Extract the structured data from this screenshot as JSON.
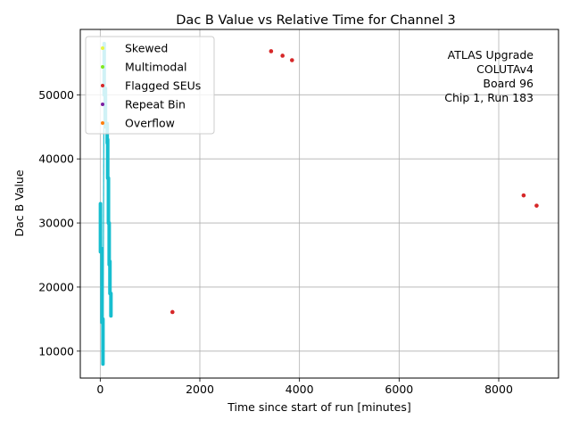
{
  "chart_data": {
    "type": "scatter",
    "title": "Dac B Value vs Relative Time for Channel 3",
    "xlabel": "Time since start of run [minutes]",
    "ylabel": "Dac B Value",
    "xlim": [
      -400,
      9200
    ],
    "ylim": [
      5800,
      60200
    ],
    "xticks": [
      0,
      2000,
      4000,
      6000,
      8000
    ],
    "xtick_labels": [
      "0",
      "2000",
      "4000",
      "6000",
      "8000"
    ],
    "yticks": [
      10000,
      20000,
      30000,
      40000,
      50000
    ],
    "ytick_labels": [
      "10000",
      "20000",
      "30000",
      "40000",
      "50000"
    ],
    "grid": true,
    "legend_position": "top-left",
    "legend": [
      {
        "label": "Skewed",
        "color": "#e6f542"
      },
      {
        "label": "Multimodal",
        "color": "#7fe81f"
      },
      {
        "label": "Flagged SEUs",
        "color": "#d62728"
      },
      {
        "label": "Repeat Bin",
        "color": "#7b1fa2"
      },
      {
        "label": "Overflow",
        "color": "#ff7f0e"
      }
    ],
    "annotation": [
      "ATLAS Upgrade",
      "COLUTAv4",
      "Board 96",
      "Chip 1, Run 183"
    ],
    "main_series": {
      "name": "",
      "color": "#17becf",
      "segments": [
        {
          "x": 5,
          "y0": 25500,
          "y1": 33000
        },
        {
          "x": 35,
          "y0": 14500,
          "y1": 26000
        },
        {
          "x": 55,
          "y0": 8000,
          "y1": 15000
        },
        {
          "x": 80,
          "y0": 50000,
          "y1": 58000
        },
        {
          "x": 105,
          "y0": 45000,
          "y1": 51000
        },
        {
          "x": 140,
          "y0": 42500,
          "y1": 45500
        },
        {
          "x": 150,
          "y0": 37000,
          "y1": 43000
        },
        {
          "x": 165,
          "y0": 30000,
          "y1": 37000
        },
        {
          "x": 180,
          "y0": 23500,
          "y1": 30000
        },
        {
          "x": 195,
          "y0": 19000,
          "y1": 24000
        },
        {
          "x": 215,
          "y0": 15500,
          "y1": 19000
        }
      ]
    },
    "series": [
      {
        "name": "Flagged SEUs",
        "color": "#d62728",
        "points": [
          {
            "x": 1450,
            "y": 16100
          },
          {
            "x": 3430,
            "y": 56800
          },
          {
            "x": 3660,
            "y": 56100
          },
          {
            "x": 3850,
            "y": 55400
          },
          {
            "x": 8500,
            "y": 34300
          },
          {
            "x": 8760,
            "y": 32700
          }
        ]
      }
    ]
  }
}
